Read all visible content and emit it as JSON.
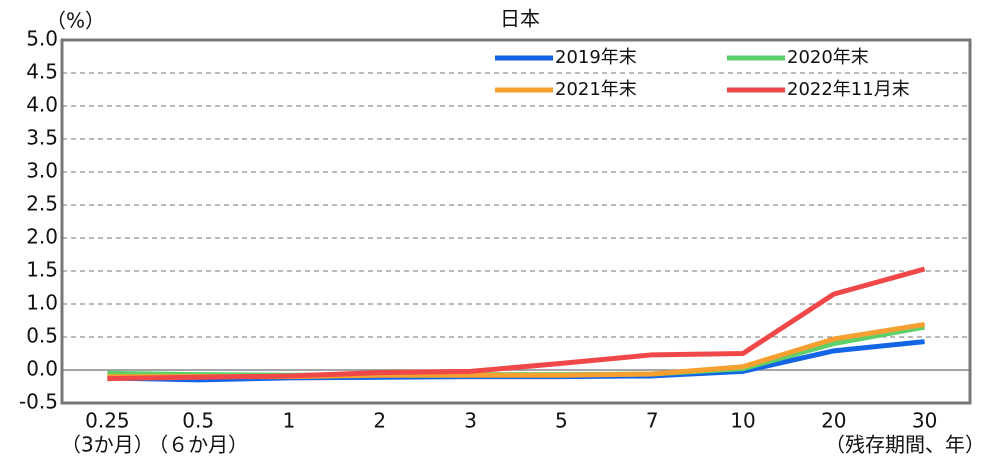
{
  "chart_data": {
    "type": "line",
    "title": "日本",
    "y_unit": "（%）",
    "x_label": "（残存期間、年）",
    "categories": [
      "0.25",
      "0.5",
      "1",
      "2",
      "3",
      "5",
      "7",
      "10",
      "20",
      "30"
    ],
    "category_notes": [
      "（3か月）",
      "（６か月）",
      null,
      null,
      null,
      null,
      null,
      null,
      null,
      null
    ],
    "series": [
      {
        "name": "2019年末",
        "color": "#1464e6",
        "values": [
          -0.12,
          -0.15,
          -0.12,
          -0.11,
          -0.1,
          -0.1,
          -0.09,
          -0.02,
          0.29,
          0.43
        ]
      },
      {
        "name": "2020年末",
        "color": "#5ed06a",
        "values": [
          -0.05,
          -0.07,
          -0.08,
          -0.07,
          -0.07,
          -0.07,
          -0.06,
          0.02,
          0.4,
          0.65
        ]
      },
      {
        "name": "2021年末",
        "color": "#f5a030",
        "values": [
          -0.1,
          -0.1,
          -0.1,
          -0.08,
          -0.08,
          -0.08,
          -0.06,
          0.05,
          0.47,
          0.69
        ]
      },
      {
        "name": "2022年11月末",
        "color": "#f04848",
        "values": [
          -0.13,
          -0.11,
          -0.09,
          -0.04,
          -0.02,
          0.1,
          0.23,
          0.25,
          1.15,
          1.53
        ]
      }
    ],
    "ylim": [
      -0.5,
      5.0
    ],
    "yticks": [
      {
        "value": -0.5,
        "label": "-0.5"
      },
      {
        "value": 0,
        "label": "0.0"
      },
      {
        "value": 0.5,
        "label": "0.5"
      },
      {
        "value": 1,
        "label": "1.0"
      },
      {
        "value": 1.5,
        "label": "1.5"
      },
      {
        "value": 2,
        "label": "2.0"
      },
      {
        "value": 2.5,
        "label": "2.5"
      },
      {
        "value": 3,
        "label": "3.0"
      },
      {
        "value": 3.5,
        "label": "3.5"
      },
      {
        "value": 4,
        "label": "4.0"
      },
      {
        "value": 4.5,
        "label": "4.5"
      },
      {
        "value": 5,
        "label": "5.0"
      }
    ],
    "grid": true
  }
}
